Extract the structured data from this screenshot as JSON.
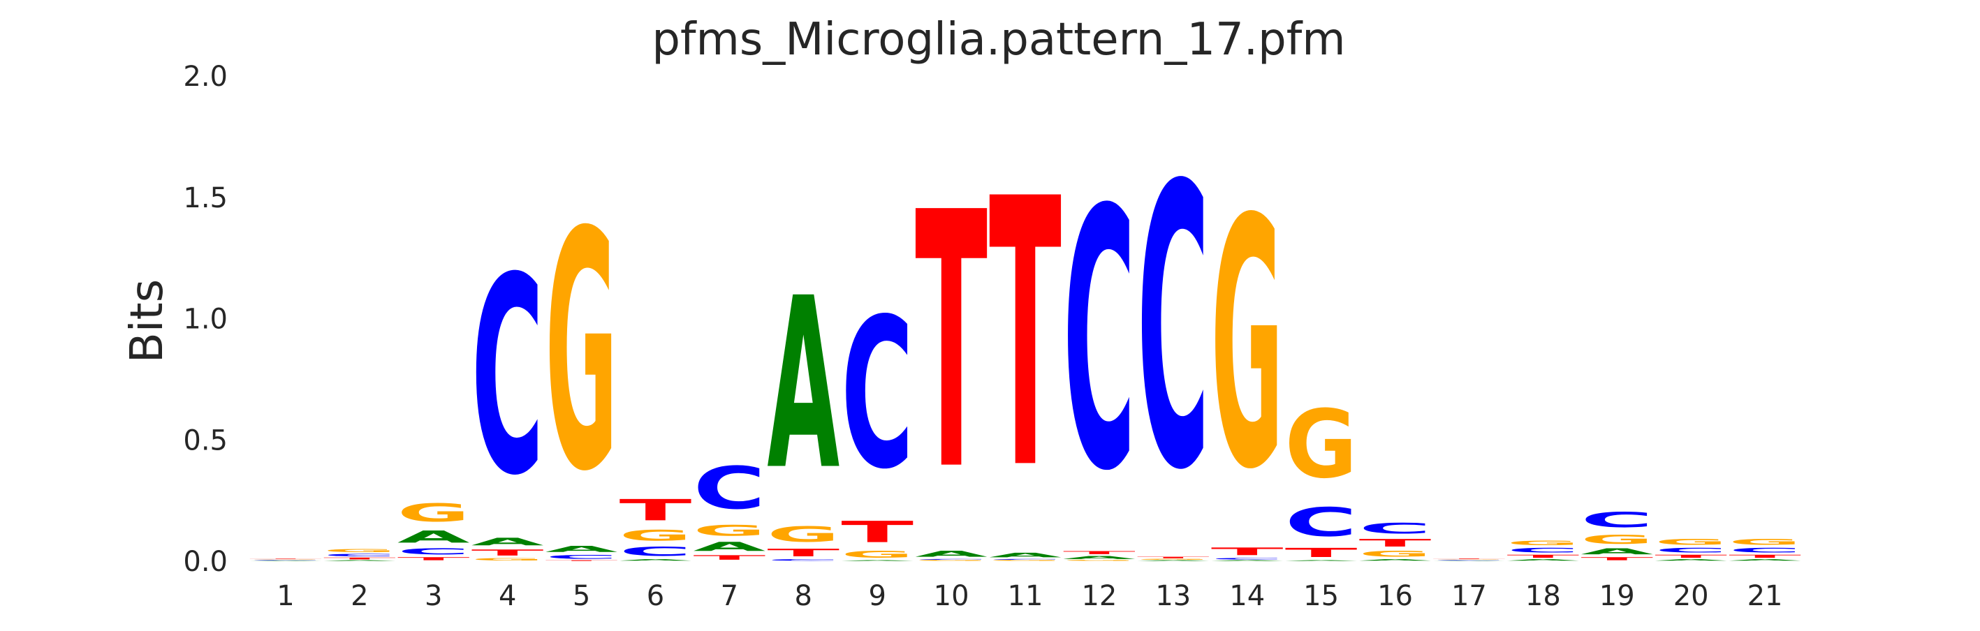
{
  "chart_data": {
    "type": "sequence-logo",
    "title": "pfms_Microglia.pattern_17.pfm",
    "xlabel": "",
    "ylabel": "Bits",
    "ylim": [
      0,
      2.0
    ],
    "y_ticks": [
      "0.0",
      "0.5",
      "1.0",
      "1.5",
      "2.0"
    ],
    "x_ticks": [
      "1",
      "2",
      "3",
      "4",
      "5",
      "6",
      "7",
      "8",
      "9",
      "10",
      "11",
      "12",
      "13",
      "14",
      "15",
      "16",
      "17",
      "18",
      "19",
      "20",
      "21"
    ],
    "grid": false,
    "colors": {
      "A": "#008000",
      "C": "#0000ff",
      "G": "#ffa500",
      "T": "#ff0000"
    },
    "positions": [
      {
        "position": "1",
        "heights": [
          [
            "A",
            0.003
          ],
          [
            "C",
            0.003
          ],
          [
            "G",
            0.003
          ],
          [
            "T",
            0.003
          ]
        ]
      },
      {
        "position": "2",
        "heights": [
          [
            "A",
            0.005
          ],
          [
            "T",
            0.012
          ],
          [
            "C",
            0.016
          ],
          [
            "G",
            0.022
          ]
        ]
      },
      {
        "position": "3",
        "heights": [
          [
            "T",
            0.02
          ],
          [
            "C",
            0.04
          ],
          [
            "A",
            0.08
          ],
          [
            "G",
            0.12
          ]
        ]
      },
      {
        "position": "4",
        "heights": [
          [
            "G",
            0.015
          ],
          [
            "T",
            0.04
          ],
          [
            "A",
            0.05
          ],
          [
            "C",
            1.3
          ]
        ]
      },
      {
        "position": "5",
        "heights": [
          [
            "T",
            0.005
          ],
          [
            "C",
            0.025
          ],
          [
            "A",
            0.04
          ],
          [
            "G",
            1.57
          ]
        ]
      },
      {
        "position": "6",
        "heights": [
          [
            "A",
            0.01
          ],
          [
            "C",
            0.06
          ],
          [
            "G",
            0.07
          ],
          [
            "T",
            0.14
          ]
        ]
      },
      {
        "position": "7",
        "heights": [
          [
            "T",
            0.03
          ],
          [
            "A",
            0.06
          ],
          [
            "G",
            0.07
          ],
          [
            "C",
            0.28
          ]
        ]
      },
      {
        "position": "8",
        "heights": [
          [
            "C",
            0.01
          ],
          [
            "T",
            0.05
          ],
          [
            "G",
            0.1
          ],
          [
            "A",
            1.13
          ]
        ]
      },
      {
        "position": "9",
        "heights": [
          [
            "A",
            0.005
          ],
          [
            "G",
            0.045
          ],
          [
            "T",
            0.14
          ],
          [
            "C",
            0.99
          ]
        ]
      },
      {
        "position": "10",
        "heights": [
          [
            "G",
            0.005
          ],
          [
            "C",
            0.005
          ],
          [
            "A",
            0.04
          ],
          [
            "T",
            1.69
          ]
        ]
      },
      {
        "position": "11",
        "heights": [
          [
            "G",
            0.005
          ],
          [
            "C",
            0.005
          ],
          [
            "A",
            0.03
          ],
          [
            "T",
            1.77
          ]
        ]
      },
      {
        "position": "12",
        "heights": [
          [
            "G",
            0.005
          ],
          [
            "A",
            0.02
          ],
          [
            "T",
            0.02
          ],
          [
            "C",
            1.71
          ]
        ]
      },
      {
        "position": "13",
        "heights": [
          [
            "A",
            0.005
          ],
          [
            "G",
            0.005
          ],
          [
            "T",
            0.01
          ],
          [
            "C",
            1.86
          ]
        ]
      },
      {
        "position": "14",
        "heights": [
          [
            "A",
            0.005
          ],
          [
            "C",
            0.01
          ],
          [
            "T",
            0.05
          ],
          [
            "G",
            1.64
          ]
        ]
      },
      {
        "position": "15",
        "heights": [
          [
            "A",
            0.005
          ],
          [
            "T",
            0.06
          ],
          [
            "C",
            0.19
          ],
          [
            "G",
            0.45
          ]
        ]
      },
      {
        "position": "16",
        "heights": [
          [
            "A",
            0.01
          ],
          [
            "G",
            0.04
          ],
          [
            "T",
            0.05
          ],
          [
            "C",
            0.07
          ]
        ]
      },
      {
        "position": "17",
        "heights": [
          [
            "A",
            0.002
          ],
          [
            "C",
            0.003
          ],
          [
            "G",
            0.003
          ],
          [
            "T",
            0.004
          ]
        ]
      },
      {
        "position": "18",
        "heights": [
          [
            "A",
            0.01
          ],
          [
            "T",
            0.02
          ],
          [
            "C",
            0.03
          ],
          [
            "G",
            0.03
          ]
        ]
      },
      {
        "position": "19",
        "heights": [
          [
            "T",
            0.02
          ],
          [
            "A",
            0.04
          ],
          [
            "G",
            0.06
          ],
          [
            "C",
            0.1
          ]
        ]
      },
      {
        "position": "20",
        "heights": [
          [
            "A",
            0.01
          ],
          [
            "T",
            0.02
          ],
          [
            "C",
            0.03
          ],
          [
            "G",
            0.04
          ]
        ]
      },
      {
        "position": "21",
        "heights": [
          [
            "A",
            0.01
          ],
          [
            "T",
            0.02
          ],
          [
            "C",
            0.03
          ],
          [
            "G",
            0.04
          ]
        ]
      }
    ]
  }
}
